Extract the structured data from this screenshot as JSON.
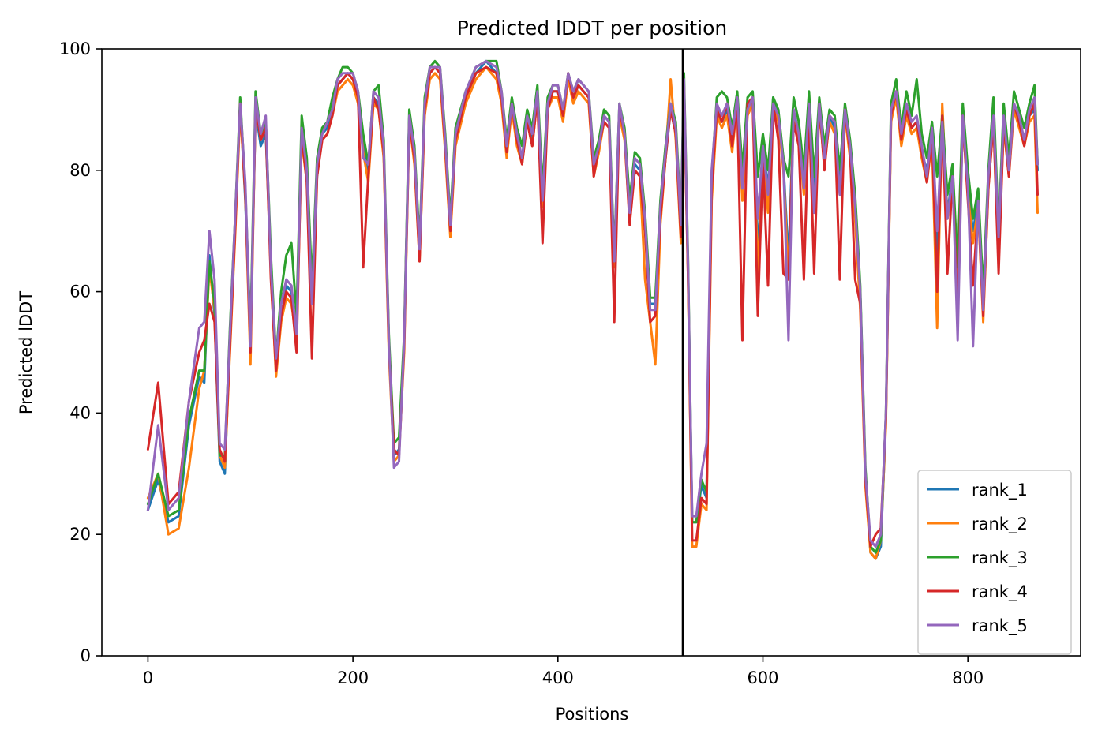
{
  "chart_data": {
    "type": "line",
    "title": "Predicted lDDT per position",
    "xlabel": "Positions",
    "ylabel": "Predicted lDDT",
    "xlim": [
      -45,
      910
    ],
    "ylim": [
      0,
      100
    ],
    "xticks": [
      0,
      200,
      400,
      600,
      800
    ],
    "yticks": [
      0,
      20,
      40,
      60,
      80,
      100
    ],
    "grid": false,
    "legend_position": "lower-right",
    "chain_break": 522,
    "x": [
      0,
      10,
      20,
      30,
      40,
      50,
      55,
      60,
      65,
      70,
      75,
      80,
      85,
      90,
      95,
      100,
      105,
      110,
      115,
      120,
      125,
      130,
      135,
      140,
      145,
      150,
      155,
      160,
      165,
      170,
      175,
      180,
      185,
      190,
      195,
      200,
      205,
      210,
      215,
      220,
      225,
      230,
      235,
      240,
      245,
      250,
      255,
      260,
      265,
      270,
      275,
      280,
      285,
      290,
      295,
      300,
      310,
      320,
      330,
      340,
      345,
      350,
      355,
      360,
      365,
      370,
      375,
      380,
      385,
      390,
      395,
      400,
      405,
      410,
      415,
      420,
      425,
      430,
      435,
      440,
      445,
      450,
      455,
      460,
      465,
      470,
      475,
      480,
      485,
      490,
      495,
      500,
      505,
      510,
      515,
      520,
      523,
      527,
      531,
      535,
      540,
      545,
      550,
      555,
      560,
      565,
      570,
      575,
      580,
      585,
      590,
      595,
      600,
      605,
      610,
      615,
      620,
      625,
      630,
      635,
      640,
      645,
      650,
      655,
      660,
      665,
      670,
      675,
      680,
      685,
      690,
      695,
      700,
      705,
      710,
      715,
      720,
      725,
      730,
      735,
      740,
      745,
      750,
      755,
      760,
      765,
      770,
      775,
      780,
      785,
      790,
      795,
      800,
      805,
      810,
      815,
      820,
      825,
      830,
      835,
      840,
      845,
      850,
      855,
      860,
      865,
      868
    ],
    "series": [
      {
        "name": "rank_1",
        "color": "#1f77b4",
        "values": [
          24,
          29,
          22,
          23,
          38,
          46,
          45,
          66,
          56,
          32,
          30,
          52,
          71,
          91,
          75,
          52,
          90,
          84,
          86,
          64,
          49,
          58,
          61,
          60,
          53,
          86,
          79,
          60,
          79,
          86,
          87,
          90,
          94,
          95,
          96,
          95,
          92,
          84,
          79,
          92,
          91,
          83,
          52,
          33,
          34,
          52,
          89,
          82,
          66,
          90,
          96,
          97,
          96,
          84,
          70,
          85,
          92,
          96,
          98,
          96,
          92,
          84,
          91,
          85,
          82,
          89,
          85,
          93,
          75,
          91,
          93,
          93,
          89,
          96,
          92,
          94,
          93,
          92,
          80,
          84,
          89,
          88,
          65,
          90,
          86,
          74,
          81,
          80,
          71,
          58,
          58,
          73,
          82,
          90,
          86,
          70,
          94,
          63,
          22,
          22,
          28,
          26,
          78,
          90,
          88,
          90,
          85,
          92,
          77,
          90,
          92,
          66,
          84,
          77,
          92,
          89,
          81,
          65,
          90,
          86,
          78,
          91,
          75,
          91,
          82,
          89,
          87,
          78,
          90,
          83,
          74,
          60,
          30,
          17,
          16,
          18,
          39,
          89,
          93,
          85,
          90,
          87,
          88,
          83,
          80,
          86,
          66,
          88,
          73,
          79,
          62,
          89,
          77,
          70,
          75,
          57,
          78,
          89,
          68,
          88,
          80,
          91,
          88,
          85,
          89,
          90,
          80
        ]
      },
      {
        "name": "rank_2",
        "color": "#ff7f0e",
        "values": [
          26,
          30,
          20,
          21,
          31,
          44,
          47,
          64,
          57,
          33,
          31,
          50,
          69,
          90,
          76,
          48,
          91,
          85,
          88,
          63,
          46,
          55,
          59,
          58,
          52,
          85,
          78,
          58,
          80,
          85,
          86,
          89,
          93,
          94,
          95,
          94,
          91,
          83,
          78,
          91,
          90,
          82,
          50,
          32,
          33,
          50,
          88,
          81,
          65,
          89,
          95,
          96,
          95,
          83,
          69,
          84,
          91,
          95,
          97,
          95,
          91,
          82,
          90,
          84,
          81,
          88,
          84,
          92,
          74,
          90,
          92,
          92,
          88,
          95,
          91,
          93,
          92,
          91,
          79,
          83,
          88,
          87,
          64,
          89,
          85,
          72,
          80,
          79,
          62,
          55,
          48,
          71,
          82,
          95,
          85,
          68,
          93,
          62,
          18,
          18,
          25,
          24,
          75,
          89,
          87,
          89,
          83,
          91,
          75,
          89,
          91,
          63,
          82,
          73,
          91,
          88,
          80,
          62,
          89,
          85,
          76,
          90,
          73,
          90,
          81,
          88,
          86,
          76,
          89,
          82,
          72,
          57,
          28,
          17,
          16,
          19,
          38,
          88,
          92,
          84,
          89,
          86,
          87,
          82,
          78,
          85,
          54,
          91,
          72,
          78,
          60,
          88,
          76,
          68,
          74,
          55,
          77,
          88,
          67,
          87,
          79,
          90,
          87,
          84,
          88,
          89,
          73
        ]
      },
      {
        "name": "rank_3",
        "color": "#2ca02c",
        "values": [
          25,
          30,
          23,
          24,
          39,
          47,
          47,
          65,
          58,
          33,
          33,
          54,
          72,
          92,
          77,
          53,
          93,
          86,
          88,
          66,
          49,
          60,
          66,
          68,
          56,
          89,
          82,
          61,
          82,
          87,
          88,
          92,
          95,
          97,
          97,
          96,
          93,
          86,
          81,
          93,
          94,
          85,
          53,
          35,
          36,
          53,
          90,
          84,
          68,
          92,
          97,
          98,
          97,
          86,
          72,
          87,
          93,
          97,
          98,
          98,
          93,
          85,
          92,
          87,
          84,
          90,
          87,
          94,
          77,
          92,
          94,
          94,
          90,
          96,
          93,
          95,
          94,
          93,
          82,
          85,
          90,
          89,
          66,
          91,
          87,
          75,
          83,
          82,
          73,
          59,
          59,
          75,
          84,
          91,
          88,
          72,
          96,
          65,
          22,
          22,
          29,
          27,
          79,
          92,
          93,
          92,
          87,
          93,
          80,
          92,
          93,
          79,
          86,
          80,
          92,
          90,
          82,
          79,
          92,
          88,
          80,
          93,
          79,
          92,
          84,
          90,
          89,
          80,
          91,
          85,
          76,
          61,
          31,
          18,
          17,
          19,
          40,
          91,
          95,
          87,
          93,
          89,
          95,
          86,
          82,
          88,
          79,
          89,
          76,
          81,
          64,
          91,
          80,
          72,
          77,
          60,
          80,
          92,
          70,
          91,
          82,
          93,
          90,
          87,
          91,
          94,
          81
        ]
      },
      {
        "name": "rank_4",
        "color": "#d62728",
        "values": [
          34,
          45,
          25,
          27,
          42,
          50,
          52,
          58,
          55,
          34,
          32,
          51,
          70,
          91,
          76,
          50,
          91,
          85,
          87,
          62,
          47,
          56,
          60,
          59,
          50,
          86,
          78,
          49,
          79,
          85,
          86,
          89,
          94,
          95,
          96,
          95,
          92,
          64,
          79,
          92,
          90,
          83,
          51,
          34,
          33,
          51,
          88,
          82,
          65,
          90,
          96,
          97,
          96,
          84,
          70,
          85,
          92,
          96,
          97,
          96,
          92,
          83,
          91,
          85,
          81,
          88,
          84,
          92,
          68,
          90,
          93,
          93,
          89,
          96,
          92,
          94,
          93,
          92,
          79,
          84,
          88,
          87,
          55,
          90,
          86,
          71,
          80,
          79,
          70,
          55,
          56,
          72,
          82,
          90,
          86,
          69,
          94,
          62,
          19,
          19,
          26,
          25,
          77,
          90,
          88,
          91,
          84,
          91,
          52,
          91,
          92,
          56,
          82,
          61,
          91,
          85,
          63,
          62,
          88,
          84,
          62,
          90,
          63,
          91,
          80,
          89,
          88,
          62,
          90,
          83,
          62,
          58,
          29,
          18,
          20,
          21,
          39,
          89,
          93,
          85,
          90,
          87,
          88,
          83,
          78,
          86,
          60,
          89,
          63,
          79,
          56,
          89,
          75,
          61,
          74,
          56,
          77,
          88,
          63,
          88,
          79,
          91,
          88,
          84,
          89,
          91,
          76
        ]
      },
      {
        "name": "rank_5",
        "color": "#9467bd",
        "values": [
          24,
          38,
          24,
          26,
          42,
          54,
          55,
          70,
          62,
          35,
          34,
          53,
          72,
          91,
          78,
          51,
          92,
          86,
          89,
          64,
          49,
          58,
          62,
          61,
          53,
          87,
          80,
          58,
          81,
          86,
          88,
          90,
          95,
          96,
          96,
          96,
          93,
          82,
          81,
          93,
          92,
          84,
          52,
          31,
          32,
          52,
          89,
          83,
          67,
          91,
          97,
          97,
          97,
          85,
          71,
          86,
          93,
          97,
          98,
          97,
          93,
          84,
          91,
          86,
          82,
          89,
          86,
          93,
          75,
          91,
          94,
          94,
          90,
          96,
          93,
          95,
          94,
          93,
          81,
          84,
          89,
          88,
          65,
          91,
          86,
          73,
          82,
          81,
          72,
          57,
          57,
          74,
          83,
          91,
          87,
          71,
          95,
          64,
          23,
          23,
          30,
          35,
          80,
          91,
          89,
          91,
          86,
          92,
          77,
          90,
          92,
          72,
          84,
          76,
          91,
          89,
          81,
          52,
          90,
          86,
          77,
          91,
          73,
          91,
          82,
          89,
          88,
          76,
          90,
          84,
          74,
          60,
          30,
          19,
          18,
          20,
          40,
          90,
          93,
          86,
          91,
          88,
          89,
          84,
          79,
          87,
          70,
          88,
          72,
          79,
          52,
          89,
          77,
          51,
          75,
          57,
          79,
          89,
          69,
          89,
          80,
          91,
          89,
          85,
          90,
          92,
          81
        ]
      }
    ]
  }
}
